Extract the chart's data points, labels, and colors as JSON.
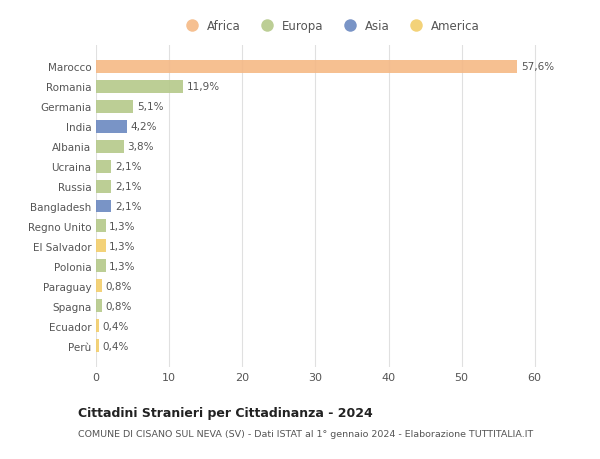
{
  "countries": [
    "Marocco",
    "Romania",
    "Germania",
    "India",
    "Albania",
    "Ucraina",
    "Russia",
    "Bangladesh",
    "Regno Unito",
    "El Salvador",
    "Polonia",
    "Paraguay",
    "Spagna",
    "Ecuador",
    "Perù"
  ],
  "values": [
    57.6,
    11.9,
    5.1,
    4.2,
    3.8,
    2.1,
    2.1,
    2.1,
    1.3,
    1.3,
    1.3,
    0.8,
    0.8,
    0.4,
    0.4
  ],
  "labels": [
    "57,6%",
    "11,9%",
    "5,1%",
    "4,2%",
    "3,8%",
    "2,1%",
    "2,1%",
    "2,1%",
    "1,3%",
    "1,3%",
    "1,3%",
    "0,8%",
    "0,8%",
    "0,4%",
    "0,4%"
  ],
  "continents": [
    "Africa",
    "Europa",
    "Europa",
    "Asia",
    "Europa",
    "Europa",
    "Europa",
    "Asia",
    "Europa",
    "America",
    "Europa",
    "America",
    "Europa",
    "America",
    "America"
  ],
  "colors": {
    "Africa": "#F5B985",
    "Europa": "#B5C98A",
    "Asia": "#6B88C0",
    "America": "#F2CE6B"
  },
  "title": "Cittadini Stranieri per Cittadinanza - 2024",
  "subtitle": "COMUNE DI CISANO SUL NEVA (SV) - Dati ISTAT al 1° gennaio 2024 - Elaborazione TUTTITALIA.IT",
  "xlim": [
    0,
    64
  ],
  "xticks": [
    0,
    10,
    20,
    30,
    40,
    50,
    60
  ],
  "background_color": "#ffffff",
  "grid_color": "#e0e0e0"
}
